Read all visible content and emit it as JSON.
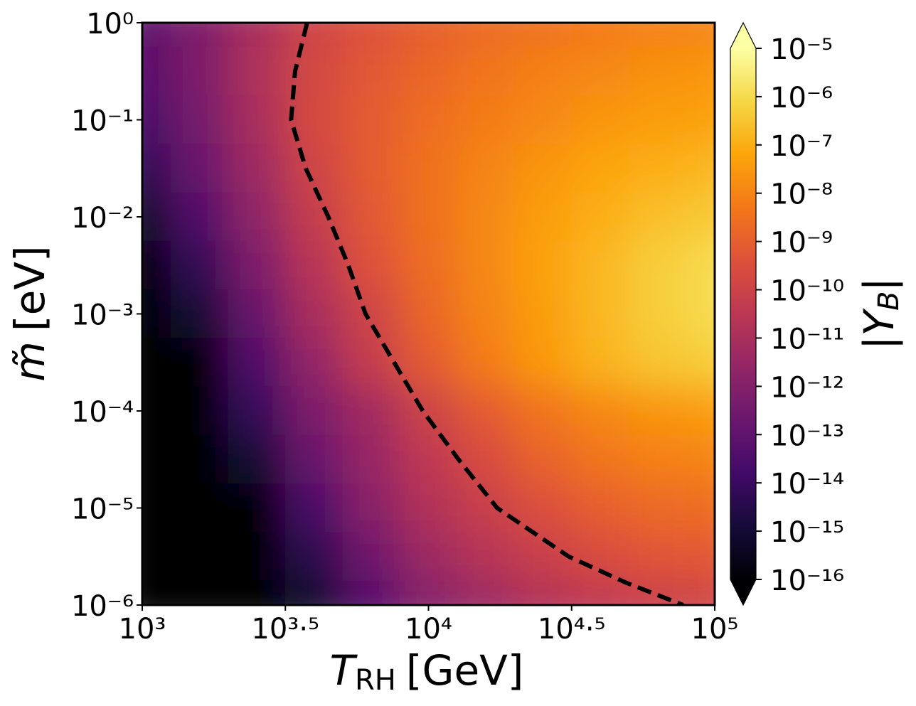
{
  "chart_data": {
    "type": "heatmap",
    "colormap": "inferno",
    "log_x": true,
    "log_y": true,
    "x_label": {
      "symbol": "T",
      "subscript": "RH",
      "unit": "[GeV]"
    },
    "y_label": {
      "symbol": "m̃",
      "unit": "[eV]"
    },
    "xlim": [
      1000,
      100000
    ],
    "ylim": [
      1e-06,
      1
    ],
    "xticks": [
      {
        "value": 1000,
        "label": "10³"
      },
      {
        "value": 3162.2777,
        "label": "10³·⁵"
      },
      {
        "value": 10000,
        "label": "10⁴"
      },
      {
        "value": 31622.777,
        "label": "10⁴·⁵"
      },
      {
        "value": 100000,
        "label": "10⁵"
      }
    ],
    "yticks": [
      {
        "value": 1e-06,
        "label": "10⁻⁶"
      },
      {
        "value": 1e-05,
        "label": "10⁻⁵"
      },
      {
        "value": 0.0001,
        "label": "10⁻⁴"
      },
      {
        "value": 0.001,
        "label": "10⁻³"
      },
      {
        "value": 0.01,
        "label": "10⁻²"
      },
      {
        "value": 0.1,
        "label": "10⁻¹"
      },
      {
        "value": 1,
        "label": "10⁰"
      }
    ],
    "x": [
      1000,
      1584.89,
      2511.89,
      3981.07,
      6309.57,
      10000,
      15848.9,
      25118.9,
      39810.7,
      63095.7,
      100000
    ],
    "y": [
      1,
      0.316,
      0.1,
      0.0316,
      0.01,
      0.00316,
      0.001,
      0.000316,
      0.0001,
      3.16e-05,
      1e-05,
      3.16e-06,
      1e-06
    ],
    "z": [
      [
        1e-13,
        6.3e-13,
        1e-11,
        1.26e-10,
        4e-10,
        1e-09,
        2e-09,
        3.2e-09,
        5e-09,
        7.9e-09,
        1e-08
      ],
      [
        6.3e-14,
        6.3e-13,
        1.26e-11,
        1.6e-10,
        6.3e-10,
        1.6e-09,
        4e-09,
        7.9e-09,
        1.26e-08,
        2e-08,
        2.5e-08
      ],
      [
        2.5e-14,
        4e-13,
        1e-11,
        2e-10,
        7.9e-10,
        2.5e-09,
        6.3e-09,
        1.26e-08,
        2.5e-08,
        4e-08,
        5e-08
      ],
      [
        5e-15,
        1.6e-13,
        5e-12,
        1.26e-10,
        7.9e-10,
        3.2e-09,
        1e-08,
        2.5e-08,
        6.3e-08,
        1e-07,
        1.6e-07
      ],
      [
        6.3e-16,
        4e-14,
        2e-12,
        6.3e-11,
        6.3e-10,
        3.2e-09,
        1.26e-08,
        4e-08,
        1e-07,
        2.5e-07,
        4e-07
      ],
      [
        3.2e-17,
        6.3e-15,
        6.3e-13,
        2.5e-11,
        4e-10,
        2.5e-09,
        1.26e-08,
        5e-08,
        1.6e-07,
        5e-07,
        1e-06
      ],
      [
        1e-17,
        1e-15,
        1.6e-13,
        1e-11,
        1.26e-10,
        1.6e-09,
        1e-08,
        4e-08,
        1.6e-07,
        5e-07,
        1e-06
      ],
      [
        1e-17,
        1e-16,
        4e-14,
        2.5e-12,
        6.3e-11,
        7.9e-10,
        6.3e-09,
        3.2e-08,
        1.26e-07,
        3.2e-07,
        5e-07
      ],
      [
        1e-17,
        1.6e-17,
        7.9e-15,
        6.3e-13,
        6.3e-12,
        1.1e-10,
        7.9e-10,
        4e-09,
        1.26e-08,
        2.5e-08,
        4e-08
      ],
      [
        1e-18,
        3.2e-18,
        1e-15,
        1.6e-13,
        3.2e-12,
        4e-11,
        2.5e-10,
        1.26e-09,
        4e-09,
        7.9e-09,
        1e-08
      ],
      [
        1e-18,
        1e-18,
        1e-16,
        2.5e-14,
        1.26e-12,
        1.6e-11,
        7.9e-11,
        3.2e-10,
        1e-09,
        2e-09,
        2.5e-09
      ],
      [
        1e-18,
        1e-18,
        1e-17,
        4e-15,
        2.5e-13,
        4e-12,
        2e-11,
        7.9e-11,
        2.5e-10,
        5e-10,
        6.3e-10
      ],
      [
        1e-18,
        1e-18,
        3.2e-18,
        6.3e-16,
        5e-14,
        1e-12,
        4e-12,
        1.6e-11,
        4e-11,
        7.9e-11,
        1.26e-10
      ]
    ],
    "contour": {
      "x": [
        3767,
        3420,
        3311,
        3725,
        4467,
        5248,
        6026,
        7586,
        9550,
        12735,
        17378,
        30903,
        48978,
        77625
      ],
      "y": [
        1,
        0.316,
        0.1,
        0.0316,
        0.01,
        0.00316,
        0.001,
        0.000316,
        0.0001,
        3.16e-05,
        1e-05,
        3.16e-06,
        1.7e-06,
        1e-06
      ]
    },
    "colorbar": {
      "label": {
        "prefix": "|",
        "symbol": "Y",
        "subscript": "B",
        "suffix": "|"
      },
      "lim": [
        1e-16,
        1e-05
      ],
      "extend": "both",
      "ticks": [
        {
          "value": 1e-16,
          "label": "10⁻¹⁶"
        },
        {
          "value": 1e-15,
          "label": "10⁻¹⁵"
        },
        {
          "value": 1e-14,
          "label": "10⁻¹⁴"
        },
        {
          "value": 1e-13,
          "label": "10⁻¹³"
        },
        {
          "value": 1e-12,
          "label": "10⁻¹²"
        },
        {
          "value": 1e-11,
          "label": "10⁻¹¹"
        },
        {
          "value": 1e-10,
          "label": "10⁻¹⁰"
        },
        {
          "value": 1e-09,
          "label": "10⁻⁹"
        },
        {
          "value": 1e-08,
          "label": "10⁻⁸"
        },
        {
          "value": 1e-07,
          "label": "10⁻⁷"
        },
        {
          "value": 1e-06,
          "label": "10⁻⁶"
        },
        {
          "value": 1e-05,
          "label": "10⁻⁵"
        }
      ]
    }
  }
}
